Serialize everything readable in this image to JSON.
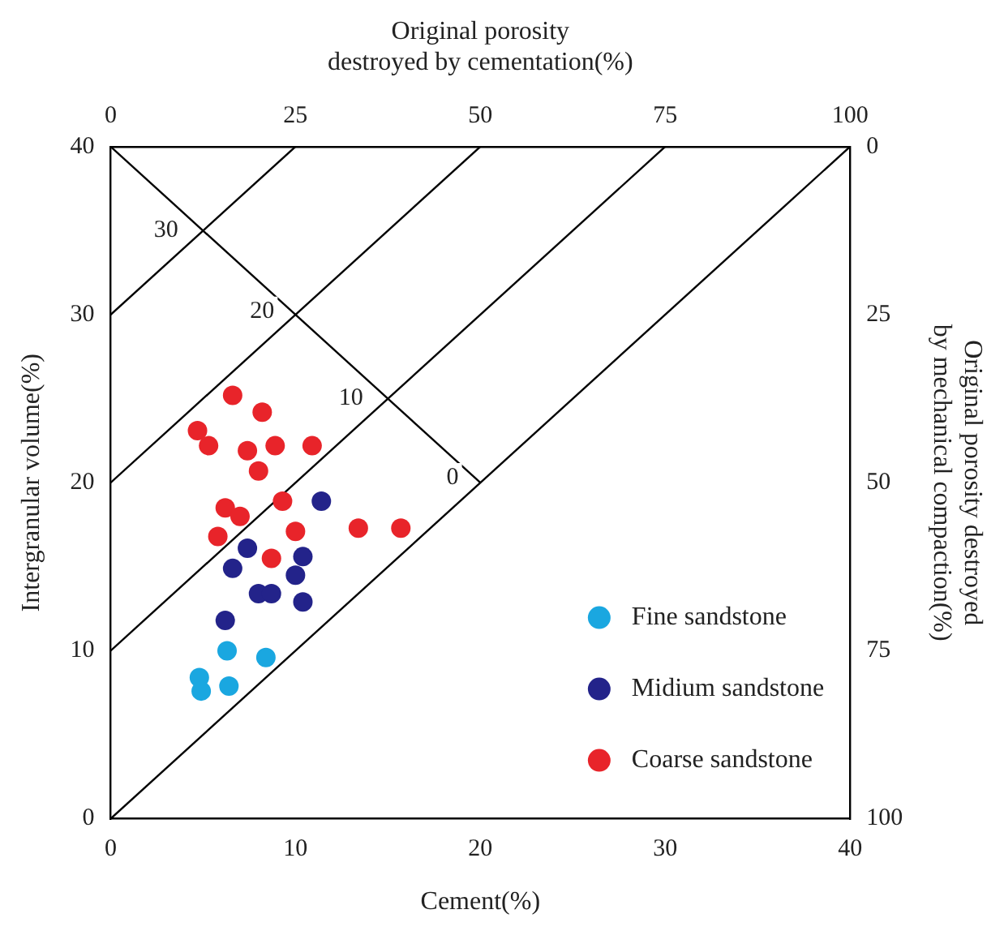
{
  "chart_data": {
    "type": "scatter",
    "xlabel": "Cement(%)",
    "ylabel": "Intergranular volume(%)",
    "x2label": "Original porosity destroyed by cementation(%)",
    "y2label": "Original porosity destroyed by mechanical compaction(%)",
    "xlim": [
      0,
      40
    ],
    "xticks": [
      0,
      10,
      20,
      30,
      40
    ],
    "ylim": [
      0,
      40
    ],
    "yticks": [
      0,
      10,
      20,
      30,
      40
    ],
    "x2lim": [
      0,
      100
    ],
    "x2ticks": [
      0,
      25,
      50,
      75,
      100
    ],
    "y2lim": [
      100,
      0
    ],
    "y2ticks": [
      0,
      25,
      50,
      75,
      100
    ],
    "grid": false,
    "legend": "bottom right",
    "marker": "circle",
    "series": [
      {
        "name": "Fine sandstone",
        "color": "#1aa7e0",
        "x": [
          6.3,
          8.4,
          4.8,
          4.9,
          6.4
        ],
        "values": [
          10.0,
          9.6,
          8.4,
          7.6,
          7.9
        ]
      },
      {
        "name": "Midium sandstone",
        "color": "#23238a",
        "x": [
          11.4,
          7.4,
          10.4,
          6.6,
          10.0,
          8.0,
          8.7,
          10.4,
          6.2
        ],
        "values": [
          18.9,
          16.1,
          15.6,
          14.9,
          14.5,
          13.4,
          13.4,
          12.9,
          11.8
        ]
      },
      {
        "name": "Coarse sandstone",
        "color": "#e8242a",
        "x": [
          6.6,
          8.2,
          4.7,
          5.3,
          7.4,
          8.9,
          10.9,
          8.0,
          6.2,
          7.0,
          9.3,
          5.8,
          10.0,
          13.4,
          15.7,
          8.7
        ],
        "values": [
          25.2,
          24.2,
          23.1,
          22.2,
          21.9,
          22.2,
          22.2,
          20.7,
          18.5,
          18.0,
          18.9,
          16.8,
          17.1,
          17.3,
          17.3,
          15.5
        ]
      },
      {
        "type": "line",
        "marker": "none",
        "color": "#000000",
        "x": [
          0,
          10
        ],
        "values": [
          30,
          40
        ]
      },
      {
        "type": "line",
        "marker": "none",
        "color": "#000000",
        "x": [
          0,
          20
        ],
        "values": [
          20,
          40
        ]
      },
      {
        "type": "line",
        "marker": "none",
        "color": "#000000",
        "x": [
          0,
          30
        ],
        "values": [
          10,
          40
        ]
      },
      {
        "type": "line",
        "marker": "none",
        "color": "#000000",
        "x": [
          0,
          40
        ],
        "values": [
          0,
          40
        ]
      },
      {
        "type": "line",
        "marker": "none",
        "color": "#000000",
        "x": [
          0,
          20
        ],
        "values": [
          40,
          20
        ]
      }
    ],
    "annotations": [
      {
        "text": "30",
        "x": 3,
        "y": 35
      },
      {
        "text": "20",
        "x": 8.2,
        "y": 30.2
      },
      {
        "text": "10",
        "x": 13,
        "y": 25
      },
      {
        "text": "0",
        "x": 18.5,
        "y": 20.3
      }
    ]
  }
}
